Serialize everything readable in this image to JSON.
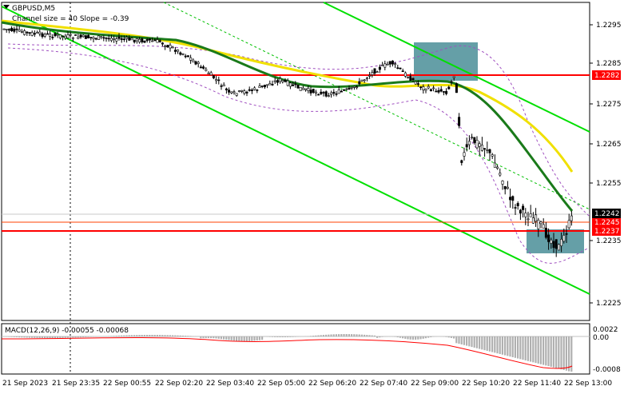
{
  "header": {
    "symbol": "GBPUSD,M5",
    "indicator": "Channel size = 40 Slope = -0.39"
  },
  "price_axis": {
    "ticks": [
      "1.2295",
      "1.2285",
      "1.2275",
      "1.2265",
      "1.2255",
      "1.2235",
      "1.2225"
    ],
    "labels": [
      {
        "text": "1.2282",
        "color": "#ff0000",
        "text_color": "#ffffff"
      },
      {
        "text": "1.2245",
        "color": "#ff0000",
        "text_color": "#ffffff"
      },
      {
        "text": "1.2242",
        "color": "#000000",
        "text_color": "#ffffff"
      },
      {
        "text": "1.2237",
        "color": "#ff0000",
        "text_color": "#ffffff"
      }
    ]
  },
  "macd": {
    "label": "MACD(12,26,9) -0.00055 -0.00068",
    "ticks": [
      "0.0022",
      "0.00",
      "-0.0008"
    ]
  },
  "time_axis": {
    "labels": [
      "21 Sep 2023",
      "21 Sep 23:35",
      "22 Sep 00:55",
      "22 Sep 02:20",
      "22 Sep 03:40",
      "22 Sep 05:00",
      "22 Sep 06:20",
      "22 Sep 07:40",
      "22 Sep 09:00",
      "22 Sep 10:20",
      "22 Sep 11:40",
      "22 Sep 13:00"
    ]
  },
  "colors": {
    "channel": "#00e000",
    "ma_fast": "#1a7a1a",
    "ma_slow": "#f0e000",
    "level": "#ff0000",
    "zone": "#4a8e98",
    "candle": "#000000",
    "macd_hist": "#b0b0b0",
    "macd_signal": "#ff0000"
  }
}
